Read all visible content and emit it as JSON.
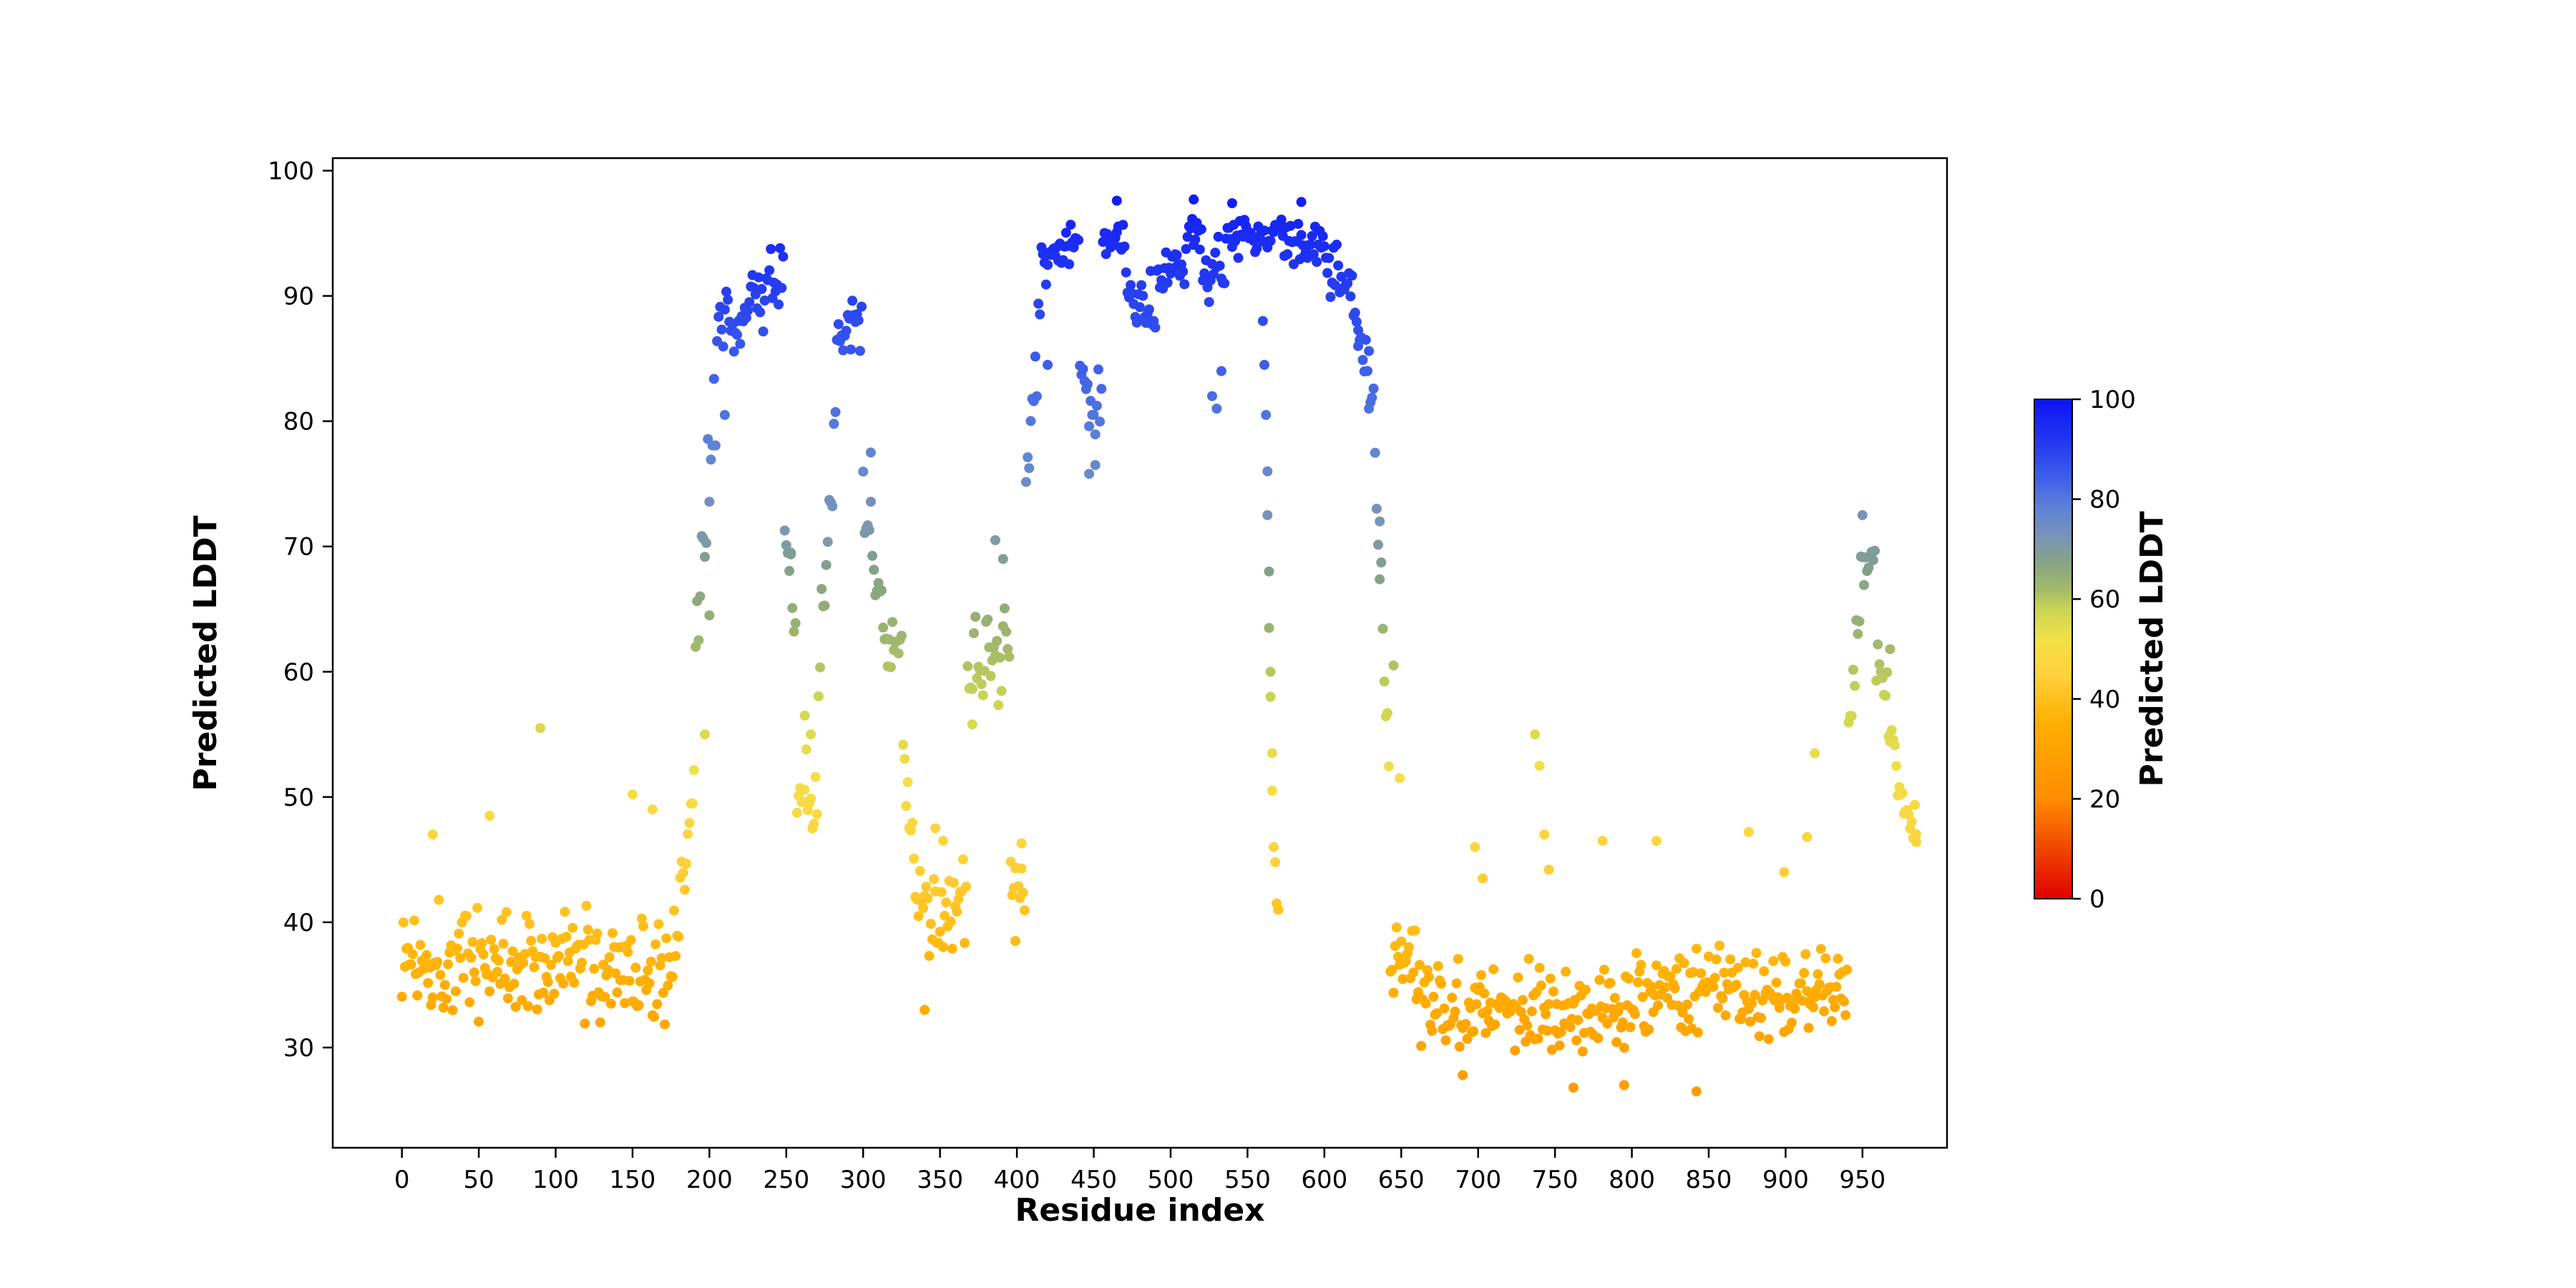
{
  "figure": {
    "background": "#ffffff"
  },
  "chart_data": {
    "type": "scatter",
    "title": "",
    "xlabel": "Residue index",
    "ylabel": "Predicted LDDT",
    "xlim": [
      -45,
      1005
    ],
    "ylim": [
      22,
      101
    ],
    "x_ticks": [
      0,
      50,
      100,
      150,
      200,
      250,
      300,
      350,
      400,
      450,
      500,
      550,
      600,
      650,
      700,
      750,
      800,
      850,
      900,
      950
    ],
    "y_ticks": [
      30,
      40,
      50,
      60,
      70,
      80,
      90,
      100
    ],
    "grid": false,
    "legend": "none",
    "marker_radius": 7,
    "n_points": 986,
    "seed": 1337,
    "colorbar": {
      "label": "Predicted LDDT",
      "ticks": [
        0,
        20,
        40,
        60,
        80,
        100
      ],
      "vmin": 0,
      "vmax": 100
    },
    "colormap_stops": [
      [
        0,
        "#e10000"
      ],
      [
        20,
        "#ff8c00"
      ],
      [
        35,
        "#ffae00"
      ],
      [
        45,
        "#ffd13c"
      ],
      [
        52,
        "#f2e049"
      ],
      [
        58,
        "#c9d455"
      ],
      [
        62,
        "#a3b96a"
      ],
      [
        68,
        "#84a188"
      ],
      [
        72,
        "#7b95b5"
      ],
      [
        78,
        "#5f83d6"
      ],
      [
        85,
        "#3a5bea"
      ],
      [
        92,
        "#2136f2"
      ],
      [
        100,
        "#0d13f5"
      ]
    ],
    "segments": [
      {
        "from": 0,
        "to": 176,
        "y0": 37.5,
        "y1": 36,
        "noise": 5.5
      },
      {
        "from": 176,
        "to": 191,
        "y0": 38,
        "y1": 52,
        "noise": 5
      },
      {
        "from": 191,
        "to": 206,
        "y0": 62,
        "y1": 84,
        "noise": 7
      },
      {
        "from": 206,
        "to": 249,
        "y0": 87,
        "y1": 92,
        "noise": 3.5
      },
      {
        "from": 249,
        "to": 257,
        "y0": 72,
        "y1": 62,
        "noise": 3
      },
      {
        "from": 257,
        "to": 271,
        "y0": 50,
        "y1": 49,
        "noise": 5.5
      },
      {
        "from": 271,
        "to": 283,
        "y0": 58,
        "y1": 82,
        "noise": 6
      },
      {
        "from": 283,
        "to": 300,
        "y0": 88,
        "y1": 88,
        "noise": 3.5
      },
      {
        "from": 300,
        "to": 313,
        "y0": 73,
        "y1": 66,
        "noise": 3.5
      },
      {
        "from": 313,
        "to": 326,
        "y0": 63,
        "y1": 62,
        "noise": 2.5
      },
      {
        "from": 326,
        "to": 334,
        "y0": 52,
        "y1": 42,
        "noise": 4.5
      },
      {
        "from": 334,
        "to": 368,
        "y0": 41,
        "y1": 41,
        "noise": 4.8
      },
      {
        "from": 368,
        "to": 396,
        "y0": 58,
        "y1": 64,
        "noise": 5.5
      },
      {
        "from": 396,
        "to": 406,
        "y0": 44,
        "y1": 42,
        "noise": 4
      },
      {
        "from": 406,
        "to": 416,
        "y0": 74,
        "y1": 89,
        "noise": 5
      },
      {
        "from": 416,
        "to": 441,
        "y0": 93,
        "y1": 94,
        "noise": 2.4
      },
      {
        "from": 441,
        "to": 456,
        "y0": 84,
        "y1": 80,
        "noise": 4
      },
      {
        "from": 456,
        "to": 471,
        "y0": 95,
        "y1": 94,
        "noise": 2
      },
      {
        "from": 471,
        "to": 491,
        "y0": 90,
        "y1": 90,
        "noise": 2.8
      },
      {
        "from": 491,
        "to": 511,
        "y0": 92,
        "y1": 93,
        "noise": 2.6
      },
      {
        "from": 511,
        "to": 521,
        "y0": 95,
        "y1": 95,
        "noise": 2
      },
      {
        "from": 521,
        "to": 536,
        "y0": 92,
        "y1": 92,
        "noise": 3
      },
      {
        "from": 536,
        "to": 558,
        "y0": 95,
        "y1": 95,
        "noise": 2.2
      },
      {
        "from": 558,
        "to": 576,
        "y0": 95,
        "y1": 94,
        "noise": 2.2
      },
      {
        "from": 576,
        "to": 602,
        "y0": 95,
        "y1": 93,
        "noise": 2.4
      },
      {
        "from": 602,
        "to": 617,
        "y0": 92,
        "y1": 91,
        "noise": 2.6
      },
      {
        "from": 617,
        "to": 633,
        "y0": 90,
        "y1": 82,
        "noise": 3
      },
      {
        "from": 633,
        "to": 643,
        "y0": 76,
        "y1": 52,
        "noise": 3
      },
      {
        "from": 643,
        "to": 661,
        "y0": 37.5,
        "y1": 36.5,
        "noise": 3.5
      },
      {
        "from": 661,
        "to": 701,
        "y0": 34,
        "y1": 33.5,
        "noise": 4.2
      },
      {
        "from": 701,
        "to": 746,
        "y0": 34,
        "y1": 33.5,
        "noise": 4.2
      },
      {
        "from": 746,
        "to": 801,
        "y0": 33,
        "y1": 33.5,
        "noise": 4.2
      },
      {
        "from": 801,
        "to": 851,
        "y0": 34,
        "y1": 34.5,
        "noise": 4.2
      },
      {
        "from": 851,
        "to": 906,
        "y0": 35,
        "y1": 34.5,
        "noise": 4.2
      },
      {
        "from": 906,
        "to": 941,
        "y0": 34.5,
        "y1": 35,
        "noise": 4
      },
      {
        "from": 941,
        "to": 949,
        "y0": 56,
        "y1": 66,
        "noise": 4
      },
      {
        "from": 949,
        "to": 959,
        "y0": 69,
        "y1": 68.5,
        "noise": 2.5
      },
      {
        "from": 959,
        "to": 973,
        "y0": 61,
        "y1": 54,
        "noise": 3.5
      },
      {
        "from": 973,
        "to": 986,
        "y0": 50,
        "y1": 47.5,
        "noise": 2.2
      }
    ],
    "outliers": [
      [
        20,
        47
      ],
      [
        57,
        48.5
      ],
      [
        90,
        55.5
      ],
      [
        150,
        50.2
      ],
      [
        163,
        49
      ],
      [
        197,
        55
      ],
      [
        200,
        64.5
      ],
      [
        210,
        80.5
      ],
      [
        253,
        69.5
      ],
      [
        262,
        56.5
      ],
      [
        266,
        55
      ],
      [
        305,
        77.5
      ],
      [
        340,
        33
      ],
      [
        347,
        47.5
      ],
      [
        352,
        46.5
      ],
      [
        371,
        55.8
      ],
      [
        386,
        70.5
      ],
      [
        391,
        69
      ],
      [
        399,
        38.5
      ],
      [
        403,
        46.3
      ],
      [
        420,
        84.5
      ],
      [
        447,
        75.8
      ],
      [
        451,
        76.5
      ],
      [
        465,
        97.6
      ],
      [
        515,
        97.7
      ],
      [
        540,
        97.4
      ],
      [
        585,
        97.5
      ],
      [
        527,
        82
      ],
      [
        530,
        81
      ],
      [
        533,
        84
      ],
      [
        560,
        88
      ],
      [
        561,
        84.5
      ],
      [
        562,
        80.5
      ],
      [
        563,
        76
      ],
      [
        563,
        72.5
      ],
      [
        564,
        68
      ],
      [
        564,
        63.5
      ],
      [
        565,
        60
      ],
      [
        565,
        58
      ],
      [
        566,
        53.5
      ],
      [
        566,
        50.5
      ],
      [
        567,
        46
      ],
      [
        568,
        44.8
      ],
      [
        569,
        41.5
      ],
      [
        570,
        41
      ],
      [
        622,
        86
      ],
      [
        629,
        81
      ],
      [
        636,
        72
      ],
      [
        645,
        60.5
      ],
      [
        649,
        51.5
      ],
      [
        690,
        27.8
      ],
      [
        698,
        46
      ],
      [
        703,
        43.5
      ],
      [
        737,
        55
      ],
      [
        740,
        52.5
      ],
      [
        743,
        47
      ],
      [
        746,
        44.2
      ],
      [
        762,
        26.8
      ],
      [
        781,
        46.5
      ],
      [
        795,
        27
      ],
      [
        816,
        46.5
      ],
      [
        842,
        26.5
      ],
      [
        876,
        47.2
      ],
      [
        899,
        44
      ],
      [
        914,
        46.8
      ],
      [
        919,
        53.5
      ],
      [
        950,
        72.5
      ],
      [
        968,
        61.8
      ],
      [
        985,
        46.4
      ]
    ]
  }
}
